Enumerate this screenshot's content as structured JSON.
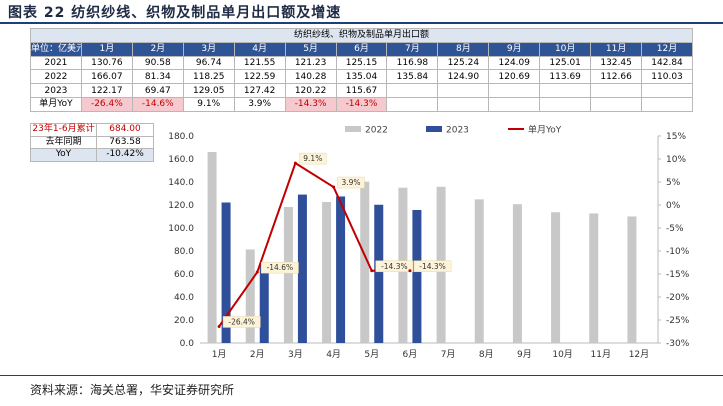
{
  "figure_title": "图表 22 纺织纱线、织物及制品单月出口额及增速",
  "source": "资料来源：海关总署，华安证券研究所",
  "table": {
    "caption": "纺织纱线、织物及制品单月出口额",
    "unit_label": "单位：亿美元",
    "months": [
      "1月",
      "2月",
      "3月",
      "4月",
      "5月",
      "6月",
      "7月",
      "8月",
      "9月",
      "10月",
      "11月",
      "12月"
    ],
    "rows": [
      {
        "label": "2021",
        "values": [
          "130.76",
          "90.58",
          "96.74",
          "121.55",
          "121.23",
          "125.15",
          "116.98",
          "125.24",
          "124.09",
          "125.01",
          "132.45",
          "142.84"
        ]
      },
      {
        "label": "2022",
        "values": [
          "166.07",
          "81.34",
          "118.25",
          "122.59",
          "140.28",
          "135.04",
          "135.84",
          "124.90",
          "120.69",
          "113.69",
          "112.66",
          "110.03"
        ]
      },
      {
        "label": "2023",
        "values": [
          "122.17",
          "69.47",
          "129.05",
          "127.42",
          "120.22",
          "115.67",
          "",
          "",
          "",
          "",
          "",
          ""
        ]
      },
      {
        "label": "单月YoY",
        "values": [
          "-26.4%",
          "-14.6%",
          "9.1%",
          "3.9%",
          "-14.3%",
          "-14.3%",
          "",
          "",
          "",
          "",
          "",
          ""
        ]
      }
    ],
    "negative_flags": [
      true,
      true,
      false,
      false,
      true,
      true,
      false,
      false,
      false,
      false,
      false,
      false
    ]
  },
  "summary": {
    "accum_label": "23年1-6月累计",
    "accum_value": "684.00",
    "prev_label": "去年同期",
    "prev_value": "763.58",
    "yoy_label": "YoY",
    "yoy_value": "-10.42%"
  },
  "chart_data": {
    "type": "bar",
    "categories": [
      "1月",
      "2月",
      "3月",
      "4月",
      "5月",
      "6月",
      "7月",
      "8月",
      "9月",
      "10月",
      "11月",
      "12月"
    ],
    "series": [
      {
        "name": "2022",
        "type": "bar",
        "axis": "left",
        "color": "#c8c8c8",
        "values": [
          166.07,
          81.34,
          118.25,
          122.59,
          140.28,
          135.04,
          135.84,
          124.9,
          120.69,
          113.69,
          112.66,
          110.03
        ]
      },
      {
        "name": "2023",
        "type": "bar",
        "axis": "left",
        "color": "#2f4f9a",
        "values": [
          122.17,
          69.47,
          129.05,
          127.42,
          120.22,
          115.67,
          null,
          null,
          null,
          null,
          null,
          null
        ]
      },
      {
        "name": "单月YoY",
        "type": "line",
        "axis": "right",
        "color": "#c00000",
        "values": [
          -26.4,
          -14.6,
          9.1,
          3.9,
          -14.3,
          -14.3,
          null,
          null,
          null,
          null,
          null,
          null
        ],
        "labels": [
          "-26.4%",
          "-14.6%",
          "9.1%",
          "3.9%",
          "-14.3%",
          "-14.3%"
        ]
      }
    ],
    "left_axis": {
      "min": 0,
      "max": 180,
      "step": 20,
      "ticks": [
        "0.0",
        "20.0",
        "40.0",
        "60.0",
        "80.0",
        "100.0",
        "120.0",
        "140.0",
        "160.0",
        "180.0"
      ]
    },
    "right_axis": {
      "min": -30,
      "max": 15,
      "step": 5,
      "ticks": [
        "-30%",
        "-25%",
        "-20%",
        "-15%",
        "-10%",
        "-5%",
        "0%",
        "5%",
        "10%",
        "15%"
      ]
    },
    "legend_placement": "top",
    "grid": false
  }
}
